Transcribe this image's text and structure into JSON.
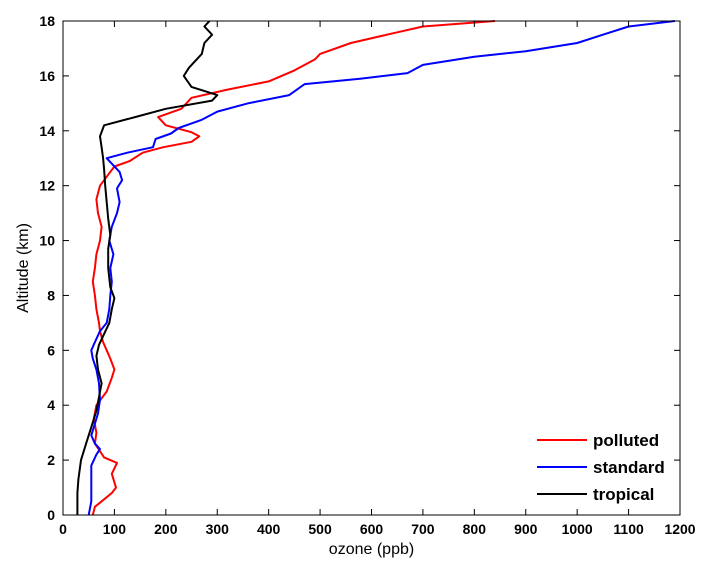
{
  "chart_data": {
    "type": "line",
    "title": "",
    "xlabel": "ozone (ppb)",
    "ylabel": "Altitude (km)",
    "xlim": [
      0,
      1200
    ],
    "ylim": [
      0,
      18
    ],
    "xticks": [
      0,
      100,
      200,
      300,
      400,
      500,
      600,
      700,
      800,
      900,
      1000,
      1100,
      1200
    ],
    "yticks": [
      0,
      2,
      4,
      6,
      8,
      10,
      12,
      14,
      16,
      18
    ],
    "grid": false,
    "legend_position": "bottom-right",
    "series": [
      {
        "name": "polluted",
        "color": "#ff0000",
        "points": [
          [
            58,
            0
          ],
          [
            62,
            0.3
          ],
          [
            95,
            0.8
          ],
          [
            103,
            1.0
          ],
          [
            95,
            1.5
          ],
          [
            105,
            1.9
          ],
          [
            80,
            2.1
          ],
          [
            62,
            2.6
          ],
          [
            65,
            3.0
          ],
          [
            60,
            3.5
          ],
          [
            65,
            4.0
          ],
          [
            85,
            4.5
          ],
          [
            95,
            5.0
          ],
          [
            100,
            5.3
          ],
          [
            92,
            5.7
          ],
          [
            85,
            6.0
          ],
          [
            78,
            6.3
          ],
          [
            72,
            6.7
          ],
          [
            70,
            7.0
          ],
          [
            65,
            7.5
          ],
          [
            62,
            8.0
          ],
          [
            58,
            8.5
          ],
          [
            62,
            9.0
          ],
          [
            65,
            9.5
          ],
          [
            72,
            10.0
          ],
          [
            75,
            10.5
          ],
          [
            68,
            11.0
          ],
          [
            65,
            11.5
          ],
          [
            72,
            12.0
          ],
          [
            88,
            12.4
          ],
          [
            100,
            12.7
          ],
          [
            130,
            12.9
          ],
          [
            155,
            13.2
          ],
          [
            195,
            13.4
          ],
          [
            250,
            13.6
          ],
          [
            265,
            13.8
          ],
          [
            250,
            13.95
          ],
          [
            200,
            14.2
          ],
          [
            185,
            14.5
          ],
          [
            230,
            14.8
          ],
          [
            250,
            15.2
          ],
          [
            320,
            15.5
          ],
          [
            400,
            15.8
          ],
          [
            450,
            16.2
          ],
          [
            490,
            16.6
          ],
          [
            500,
            16.8
          ],
          [
            560,
            17.2
          ],
          [
            630,
            17.5
          ],
          [
            700,
            17.8
          ],
          [
            840,
            18.0
          ]
        ]
      },
      {
        "name": "standard",
        "color": "#0000ff",
        "points": [
          [
            50,
            0
          ],
          [
            55,
            0.5
          ],
          [
            55,
            1.2
          ],
          [
            55,
            1.8
          ],
          [
            65,
            2.2
          ],
          [
            72,
            2.4
          ],
          [
            62,
            2.6
          ],
          [
            55,
            2.9
          ],
          [
            60,
            3.2
          ],
          [
            68,
            3.7
          ],
          [
            72,
            4.2
          ],
          [
            70,
            4.8
          ],
          [
            65,
            5.3
          ],
          [
            58,
            5.7
          ],
          [
            55,
            6.0
          ],
          [
            62,
            6.3
          ],
          [
            72,
            6.7
          ],
          [
            85,
            7.0
          ],
          [
            90,
            7.5
          ],
          [
            92,
            8.0
          ],
          [
            95,
            8.5
          ],
          [
            92,
            9.0
          ],
          [
            98,
            9.5
          ],
          [
            90,
            10.0
          ],
          [
            95,
            10.5
          ],
          [
            105,
            11.0
          ],
          [
            110,
            11.4
          ],
          [
            105,
            11.9
          ],
          [
            115,
            12.2
          ],
          [
            110,
            12.5
          ],
          [
            95,
            12.8
          ],
          [
            85,
            13.0
          ],
          [
            125,
            13.2
          ],
          [
            175,
            13.4
          ],
          [
            180,
            13.7
          ],
          [
            210,
            13.9
          ],
          [
            225,
            14.1
          ],
          [
            270,
            14.4
          ],
          [
            300,
            14.7
          ],
          [
            360,
            15.0
          ],
          [
            440,
            15.3
          ],
          [
            470,
            15.7
          ],
          [
            580,
            15.9
          ],
          [
            670,
            16.1
          ],
          [
            700,
            16.4
          ],
          [
            800,
            16.7
          ],
          [
            900,
            16.9
          ],
          [
            1000,
            17.2
          ],
          [
            1050,
            17.5
          ],
          [
            1100,
            17.8
          ],
          [
            1190,
            18.0
          ]
        ]
      },
      {
        "name": "tropical",
        "color": "#000000",
        "points": [
          [
            28,
            0
          ],
          [
            28,
            0.8
          ],
          [
            30,
            1.3
          ],
          [
            35,
            2.0
          ],
          [
            45,
            2.6
          ],
          [
            55,
            3.2
          ],
          [
            65,
            3.8
          ],
          [
            70,
            4.3
          ],
          [
            75,
            4.8
          ],
          [
            68,
            5.3
          ],
          [
            65,
            5.8
          ],
          [
            70,
            6.2
          ],
          [
            80,
            6.6
          ],
          [
            90,
            7.0
          ],
          [
            95,
            7.5
          ],
          [
            100,
            7.9
          ],
          [
            92,
            8.3
          ],
          [
            88,
            9.0
          ],
          [
            88,
            9.7
          ],
          [
            92,
            10.2
          ],
          [
            88,
            10.8
          ],
          [
            85,
            11.4
          ],
          [
            82,
            12.0
          ],
          [
            80,
            12.6
          ],
          [
            78,
            13.0
          ],
          [
            75,
            13.4
          ],
          [
            72,
            13.8
          ],
          [
            80,
            14.2
          ],
          [
            140,
            14.5
          ],
          [
            200,
            14.8
          ],
          [
            290,
            15.1
          ],
          [
            300,
            15.3
          ],
          [
            250,
            15.6
          ],
          [
            235,
            16.0
          ],
          [
            245,
            16.3
          ],
          [
            270,
            16.8
          ],
          [
            275,
            17.2
          ],
          [
            290,
            17.5
          ],
          [
            275,
            17.8
          ],
          [
            285,
            18.0
          ]
        ]
      }
    ]
  }
}
